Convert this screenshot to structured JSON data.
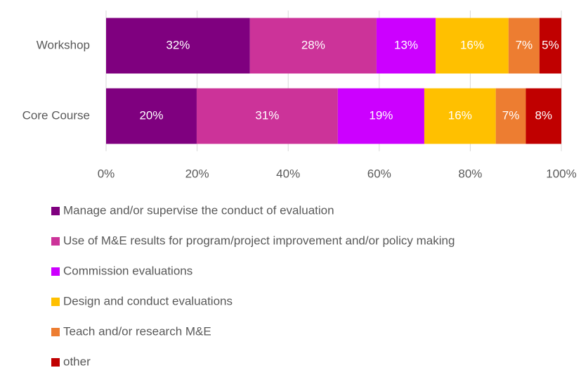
{
  "chart_data": {
    "type": "stacked_barh",
    "categories": [
      "Workshop",
      "Core Course"
    ],
    "series": [
      {
        "name": "Manage and/or supervise the conduct of evaluation",
        "color": "#7f007f",
        "values": [
          31.6,
          19.9
        ],
        "value_labels": [
          "32%",
          "20%"
        ]
      },
      {
        "name": "Use of M&E results for program/project improvement and/or policy making",
        "color": "#cc3399",
        "values": [
          27.8,
          31.0
        ],
        "value_labels": [
          "28%",
          "31%"
        ]
      },
      {
        "name": "Commission evaluations",
        "color": "#cc00ff",
        "values": [
          13.0,
          19.0
        ],
        "value_labels": [
          "13%",
          "19%"
        ]
      },
      {
        "name": "Design and conduct evaluations",
        "color": "#ffc000",
        "values": [
          16.0,
          15.7
        ],
        "value_labels": [
          "16%",
          "16%"
        ]
      },
      {
        "name": "Teach and/or research M&E",
        "color": "#ed7d31",
        "values": [
          6.8,
          6.6
        ],
        "value_labels": [
          "7%",
          "7%"
        ]
      },
      {
        "name": "other",
        "color": "#c00000",
        "values": [
          4.8,
          7.8
        ],
        "value_labels": [
          "5%",
          "8%"
        ]
      }
    ],
    "xlim": [
      0,
      100
    ],
    "xticks": [
      {
        "value": 0,
        "label": "0%"
      },
      {
        "value": 20,
        "label": "20%"
      },
      {
        "value": 40,
        "label": "40%"
      },
      {
        "value": 60,
        "label": "60%"
      },
      {
        "value": 80,
        "label": "80%"
      },
      {
        "value": 100,
        "label": "100%"
      }
    ],
    "grid": true,
    "legend": "bottom"
  }
}
